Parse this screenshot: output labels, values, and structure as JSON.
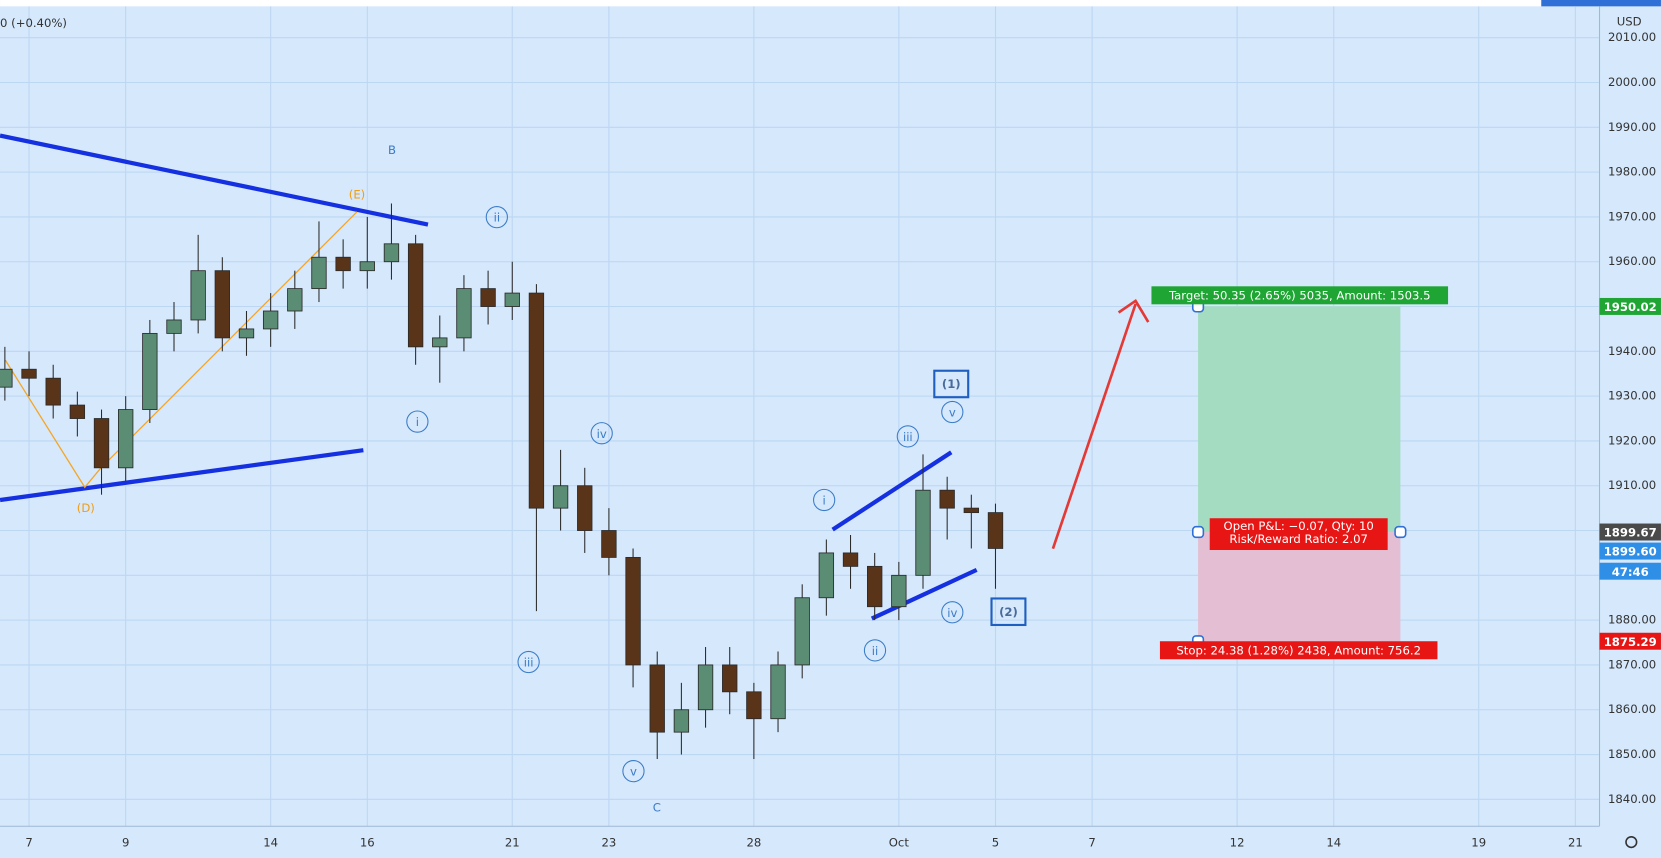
{
  "header": {
    "change": "0 (+0.40%)",
    "currency": "USD"
  },
  "chart_data": {
    "type": "candlestick",
    "x": [
      -0.5,
      0,
      0.5,
      1,
      1.5,
      2,
      2.5,
      3,
      3.5,
      4,
      4.5,
      5,
      5.5,
      6,
      6.5,
      7,
      7.5,
      8,
      8.5,
      9,
      9.5,
      10,
      10.5,
      11,
      11.5,
      12,
      12.5,
      13,
      13.5,
      14,
      14.5,
      15,
      15.5,
      16,
      16.5,
      17,
      17.5,
      18,
      18.5,
      19,
      19.5,
      20
    ],
    "open": [
      1932,
      1936,
      1934,
      1928,
      1925,
      1914,
      1927,
      1944,
      1947,
      1958,
      1943,
      1945,
      1949,
      1954,
      1961,
      1958,
      1960,
      1964,
      1941,
      1943,
      1954,
      1950,
      1953,
      1905,
      1910,
      1900,
      1894,
      1870,
      1855,
      1860,
      1870,
      1864,
      1858,
      1870,
      1885,
      1895,
      1892,
      1883,
      1890,
      1909,
      1905,
      1904
    ],
    "high": [
      1941,
      1940,
      1937,
      1931,
      1927,
      1930,
      1947,
      1951,
      1966,
      1961,
      1949,
      1953,
      1958,
      1969,
      1965,
      1970,
      1973,
      1966,
      1948,
      1957,
      1958,
      1960,
      1955,
      1918,
      1914,
      1905,
      1896,
      1873,
      1866,
      1874,
      1874,
      1866,
      1873,
      1888,
      1898,
      1899,
      1895,
      1893,
      1917,
      1912,
      1908,
      1906
    ],
    "low": [
      1929,
      1930,
      1925,
      1921,
      1908,
      1911,
      1924,
      1940,
      1944,
      1940,
      1939,
      1941,
      1945,
      1951,
      1954,
      1954,
      1956,
      1937,
      1933,
      1940,
      1946,
      1947,
      1882,
      1900,
      1895,
      1890,
      1865,
      1849,
      1850,
      1856,
      1859,
      1849,
      1855,
      1867,
      1881,
      1887,
      1880,
      1880,
      1887,
      1898,
      1896,
      1887
    ],
    "close": [
      1936,
      1934,
      1928,
      1925,
      1914,
      1927,
      1944,
      1947,
      1958,
      1943,
      1945,
      1949,
      1954,
      1961,
      1958,
      1960,
      1964,
      1941,
      1943,
      1954,
      1950,
      1953,
      1905,
      1910,
      1900,
      1894,
      1870,
      1855,
      1860,
      1870,
      1864,
      1858,
      1870,
      1885,
      1895,
      1892,
      1883,
      1890,
      1909,
      1905,
      1904,
      1896
    ],
    "up_color": "#5b8c74",
    "down_color": "#5a3418",
    "xlim": [
      -0.6,
      32.5
    ],
    "xticks": [
      {
        "value": 0,
        "label": "7"
      },
      {
        "value": 2,
        "label": "9"
      },
      {
        "value": 5,
        "label": "14"
      },
      {
        "value": 7,
        "label": "16"
      },
      {
        "value": 10,
        "label": "21"
      },
      {
        "value": 12,
        "label": "23"
      },
      {
        "value": 15,
        "label": "28"
      },
      {
        "value": 18,
        "label": "Oct"
      },
      {
        "value": 20,
        "label": "5"
      },
      {
        "value": 22,
        "label": "7"
      },
      {
        "value": 25,
        "label": "12"
      },
      {
        "value": 27,
        "label": "14"
      },
      {
        "value": 30,
        "label": "19"
      },
      {
        "value": 32,
        "label": "21"
      }
    ],
    "ylim": [
      1834,
      2017
    ],
    "yticks": [
      {
        "value": 1840,
        "label": "1840.00"
      },
      {
        "value": 1850,
        "label": "1850.00"
      },
      {
        "value": 1860,
        "label": "1860.00"
      },
      {
        "value": 1870,
        "label": "1870.00"
      },
      {
        "value": 1880,
        "label": "1880.00"
      },
      {
        "value": 1890,
        "label": "1890.00"
      },
      {
        "value": 1900,
        "label": "1900.00"
      },
      {
        "value": 1910,
        "label": "1910.00"
      },
      {
        "value": 1920,
        "label": "1920.00"
      },
      {
        "value": 1930,
        "label": "1930.00"
      },
      {
        "value": 1940,
        "label": "1940.00"
      },
      {
        "value": 1950,
        "label": "1950.00"
      },
      {
        "value": 1960,
        "label": "1960.00"
      },
      {
        "value": 1970,
        "label": "1970.00"
      },
      {
        "value": 1980,
        "label": "1980.00"
      },
      {
        "value": 1990,
        "label": "1990.00"
      },
      {
        "value": 2000,
        "label": "2000.00"
      },
      {
        "value": 2010,
        "label": "2010.00"
      }
    ],
    "grid": true,
    "annotations": [
      "B",
      "(E)",
      "(D)",
      "ii",
      "i",
      "iv",
      "iii",
      "v",
      "C",
      "i",
      "iii",
      "v",
      "(1)",
      "ii",
      "iv",
      "(2)"
    ]
  },
  "position": {
    "target_price": 1950.02,
    "entry_price": 1899.67,
    "stop_price": 1875.29,
    "current_price": "1899.60",
    "countdown": "47:46",
    "target_text": "Target: 50.35 (2.65%) 5035, Amount: 1503.5",
    "pnl_text": "Open P&L: −0.07, Qty: 10",
    "ratio_text": "Risk/Reward Ratio: 2.07",
    "stop_text": "Stop: 24.38 (1.28%) 2438, Amount: 756.2"
  }
}
